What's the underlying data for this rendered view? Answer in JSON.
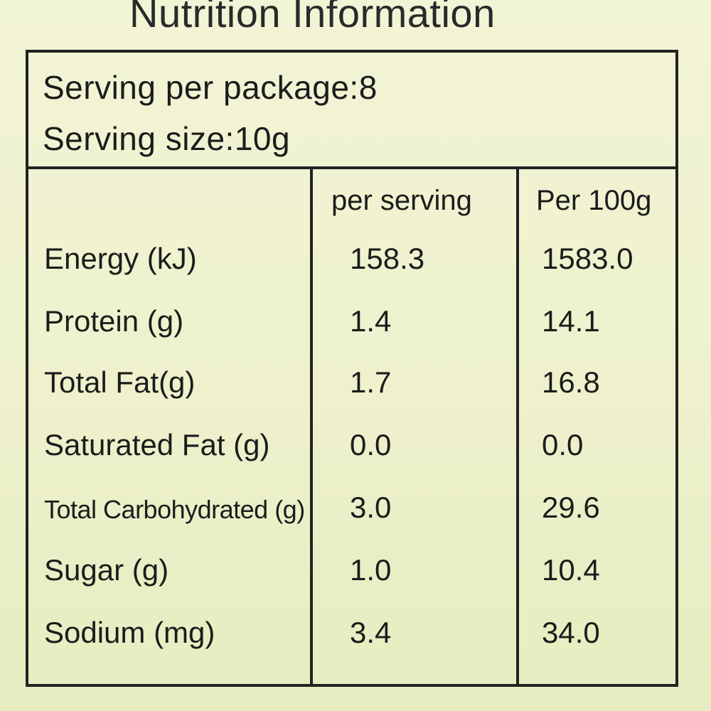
{
  "title": "Nutrition Information",
  "serving": {
    "per_package": "Serving per package:8",
    "size": "Serving size:10g"
  },
  "columns": {
    "per_serving": "per serving",
    "per_100g": "Per 100g"
  },
  "rows": [
    {
      "name": "Energy (kJ)",
      "per_serving": "158.3",
      "per_100g": "1583.0"
    },
    {
      "name": "Protein (g)",
      "per_serving": "1.4",
      "per_100g": "14.1"
    },
    {
      "name": "Total Fat(g)",
      "per_serving": "1.7",
      "per_100g": "16.8"
    },
    {
      "name": "Saturated Fat (g)",
      "per_serving": "0.0",
      "per_100g": "0.0"
    },
    {
      "name": "Total Carbohydrated (g)",
      "per_serving": "3.0",
      "per_100g": "29.6"
    },
    {
      "name": "Sugar (g)",
      "per_serving": "1.0",
      "per_100g": "10.4"
    },
    {
      "name": "Sodium (mg)",
      "per_serving": "3.4",
      "per_100g": "34.0"
    }
  ]
}
